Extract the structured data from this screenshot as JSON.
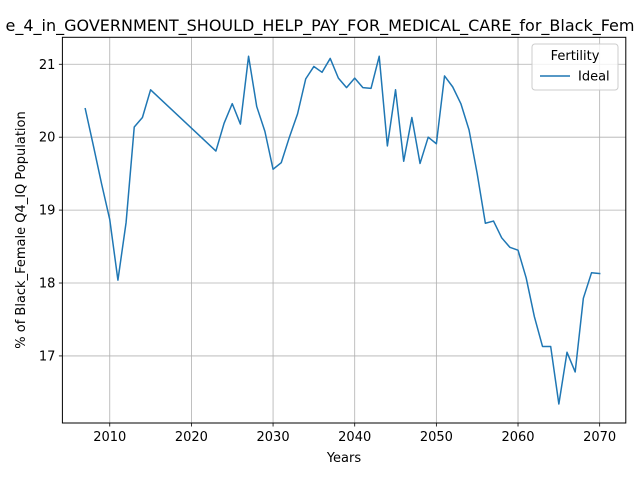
{
  "chart_data": {
    "type": "line",
    "title": "e_4_in_GOVERNMENT_SHOULD_HELP_PAY_FOR_MEDICAL_CARE_for_Black_Fem",
    "xlabel": "Years",
    "ylabel": "% of Black_Female Q4_IQ Population",
    "xlim": [
      2004.2,
      2073.2
    ],
    "ylim": [
      16.08,
      21.37
    ],
    "xticks": [
      2010,
      2020,
      2030,
      2040,
      2050,
      2060,
      2070
    ],
    "yticks": [
      17,
      18,
      19,
      20,
      21
    ],
    "grid": true,
    "legend": {
      "title": "Fertility",
      "placement": "top-right"
    },
    "series": [
      {
        "name": "Ideal",
        "color": "#1f77b4",
        "x": [
          2007,
          2008,
          2009,
          2010,
          2011,
          2012,
          2013,
          2014,
          2015,
          2023,
          2024,
          2025,
          2026,
          2027,
          2028,
          2029,
          2030,
          2031,
          2032,
          2033,
          2034,
          2035,
          2036,
          2037,
          2038,
          2039,
          2040,
          2041,
          2042,
          2043,
          2044,
          2045,
          2046,
          2047,
          2048,
          2049,
          2050,
          2051,
          2052,
          2053,
          2054,
          2055,
          2056,
          2057,
          2058,
          2059,
          2060,
          2061,
          2062,
          2063,
          2064,
          2065,
          2066,
          2067,
          2068,
          2069,
          2070
        ],
        "y": [
          20.39,
          19.88,
          19.36,
          18.87,
          18.04,
          18.83,
          20.14,
          20.27,
          20.65,
          19.81,
          20.19,
          20.46,
          20.18,
          21.11,
          20.42,
          20.08,
          19.56,
          19.65,
          20.0,
          20.32,
          20.8,
          20.97,
          20.89,
          21.08,
          20.81,
          20.68,
          20.81,
          20.68,
          20.67,
          21.11,
          19.88,
          20.65,
          19.67,
          20.27,
          19.64,
          20.0,
          19.91,
          20.84,
          20.69,
          20.46,
          20.1,
          19.5,
          18.82,
          18.85,
          18.62,
          18.49,
          18.45,
          18.07,
          17.54,
          17.13,
          17.13,
          16.34,
          17.05,
          16.78,
          17.79,
          18.14,
          18.13
        ]
      }
    ]
  }
}
